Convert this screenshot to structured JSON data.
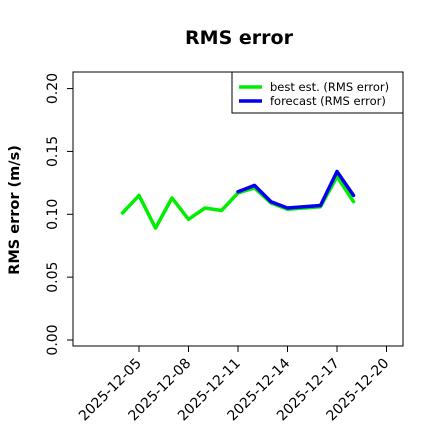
{
  "chart_data": {
    "type": "line",
    "title": "RMS error",
    "xlabel": "",
    "ylabel": "RMS error (m/s)",
    "x_ticks": [
      "2025-12-05",
      "2025-12-08",
      "2025-12-11",
      "2025-12-14",
      "2025-12-17",
      "2025-12-20"
    ],
    "highlight_tick": "2025-12-11",
    "highlight_color": "#228B22",
    "y_ticks": [
      "0.00",
      "0.05",
      "0.10",
      "0.15",
      "0.20"
    ],
    "xlim": [
      "2025-12-01",
      "2025-12-21"
    ],
    "ylim": [
      0.0,
      0.21
    ],
    "legend_position": "top-right",
    "grid": false,
    "series": [
      {
        "name": "best est. (RMS error)",
        "color": "#00ee00",
        "x": [
          "2025-12-04",
          "2025-12-05",
          "2025-12-06",
          "2025-12-07",
          "2025-12-08",
          "2025-12-09",
          "2025-12-10",
          "2025-12-11",
          "2025-12-12",
          "2025-12-13",
          "2025-12-14",
          "2025-12-16",
          "2025-12-17",
          "2025-12-18"
        ],
        "values": [
          0.101,
          0.115,
          0.089,
          0.113,
          0.096,
          0.105,
          0.103,
          0.117,
          0.121,
          0.109,
          0.104,
          0.106,
          0.13,
          0.11
        ]
      },
      {
        "name": "forecast (RMS error)",
        "color": "#0000ee",
        "x": [
          "2025-12-11",
          "2025-12-12",
          "2025-12-13",
          "2025-12-14",
          "2025-12-16",
          "2025-12-17",
          "2025-12-18"
        ],
        "values": [
          0.118,
          0.123,
          0.11,
          0.105,
          0.107,
          0.134,
          0.115
        ]
      }
    ]
  }
}
